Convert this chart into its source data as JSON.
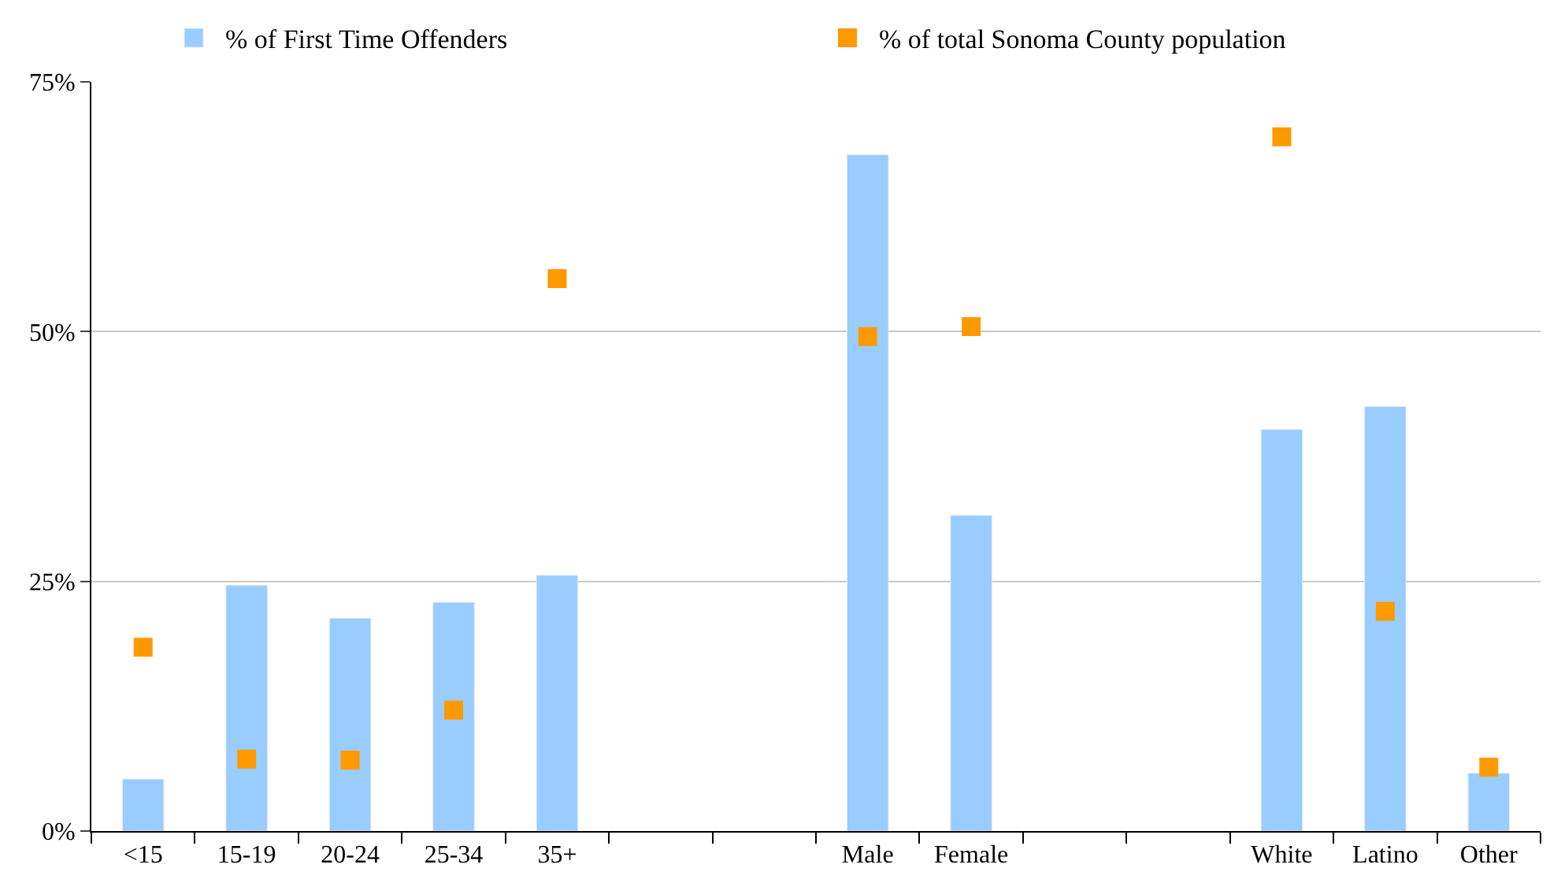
{
  "chart_data": {
    "type": "bar",
    "categories": [
      "<15",
      "15-19",
      "20-24",
      "25-34",
      "35+",
      null,
      null,
      "Male",
      "Female",
      null,
      null,
      "White",
      "Latino",
      "Other"
    ],
    "series": [
      {
        "name": "% of First Time Offenders",
        "color": "#99ccff",
        "values": [
          5.2,
          24.6,
          21.3,
          22.9,
          25.6,
          null,
          null,
          67.7,
          31.6,
          null,
          null,
          40.2,
          42.5,
          5.8
        ]
      },
      {
        "name": "% of total Sonoma County population",
        "color": "#ff9900",
        "type": "scatter",
        "values": [
          18.4,
          7.2,
          7.1,
          12.1,
          55.3,
          null,
          null,
          49.5,
          50.5,
          null,
          null,
          69.5,
          22.0,
          6.4
        ]
      }
    ],
    "ylim": [
      0,
      75
    ],
    "yticks": [
      {
        "value": 0,
        "label": "0%"
      },
      {
        "value": 25,
        "label": "25%"
      },
      {
        "value": 50,
        "label": "50%"
      },
      {
        "value": 75,
        "label": "75%"
      }
    ],
    "grid": "y",
    "legend": "top"
  }
}
